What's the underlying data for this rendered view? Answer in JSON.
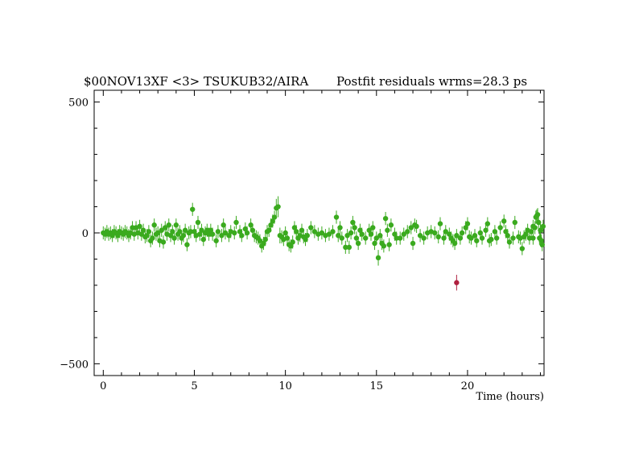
{
  "chart_data": {
    "type": "scatter",
    "title_left": "$00NOV13XF <3> TSUKUB32/AIRA",
    "title_right": "Postfit residuals wrms=28.3  ps",
    "xlabel": "Time (hours)",
    "ylabel": "",
    "xlim": [
      -0.5,
      24.2
    ],
    "ylim": [
      -545,
      545
    ],
    "xticks": [
      0,
      5,
      10,
      15,
      20
    ],
    "xtick_labels": [
      "0",
      "5",
      "10",
      "15",
      "20"
    ],
    "yticks": [
      -500,
      0,
      500
    ],
    "ytick_labels": [
      "−500",
      "0",
      "500"
    ],
    "grid": false,
    "colors": {
      "good": "#3aaa1e",
      "outlier": "#b02040"
    },
    "series": [
      {
        "name": "",
        "color": "#3aaa1e",
        "points": [
          [
            0.0,
            0,
            25
          ],
          [
            0.1,
            -5,
            25
          ],
          [
            0.2,
            5,
            25
          ],
          [
            0.3,
            -5,
            25
          ],
          [
            0.4,
            0,
            25
          ],
          [
            0.5,
            -10,
            25
          ],
          [
            0.6,
            5,
            25
          ],
          [
            0.7,
            0,
            25
          ],
          [
            0.8,
            -10,
            25
          ],
          [
            0.9,
            5,
            25
          ],
          [
            1.0,
            0,
            25
          ],
          [
            1.1,
            -5,
            25
          ],
          [
            1.2,
            5,
            25
          ],
          [
            1.3,
            0,
            25
          ],
          [
            1.4,
            -10,
            25
          ],
          [
            1.5,
            0,
            25
          ],
          [
            1.6,
            20,
            25
          ],
          [
            1.7,
            -5,
            25
          ],
          [
            1.8,
            20,
            25
          ],
          [
            1.9,
            0,
            25
          ],
          [
            2.0,
            25,
            25
          ],
          [
            2.1,
            -5,
            25
          ],
          [
            2.2,
            10,
            25
          ],
          [
            2.3,
            -15,
            25
          ],
          [
            2.4,
            -10,
            25
          ],
          [
            2.5,
            5,
            25
          ],
          [
            2.6,
            -30,
            25
          ],
          [
            2.7,
            -20,
            25
          ],
          [
            2.8,
            30,
            25
          ],
          [
            2.9,
            -5,
            25
          ],
          [
            3.0,
            0,
            25
          ],
          [
            3.1,
            -30,
            25
          ],
          [
            3.2,
            10,
            25
          ],
          [
            3.3,
            -35,
            25
          ],
          [
            3.4,
            20,
            25
          ],
          [
            3.5,
            -5,
            25
          ],
          [
            3.6,
            30,
            25
          ],
          [
            3.7,
            -10,
            25
          ],
          [
            3.8,
            5,
            25
          ],
          [
            3.9,
            -20,
            25
          ],
          [
            4.0,
            30,
            25
          ],
          [
            4.1,
            -5,
            25
          ],
          [
            4.2,
            5,
            25
          ],
          [
            4.3,
            -20,
            25
          ],
          [
            4.4,
            -10,
            25
          ],
          [
            4.5,
            10,
            25
          ],
          [
            4.6,
            -45,
            25
          ],
          [
            4.7,
            0,
            25
          ],
          [
            4.8,
            5,
            25
          ],
          [
            4.9,
            90,
            25
          ],
          [
            5.0,
            5,
            25
          ],
          [
            5.1,
            -10,
            25
          ],
          [
            5.2,
            40,
            25
          ],
          [
            5.3,
            -5,
            25
          ],
          [
            5.4,
            10,
            25
          ],
          [
            5.5,
            -25,
            25
          ],
          [
            5.6,
            0,
            25
          ],
          [
            5.7,
            10,
            25
          ],
          [
            5.8,
            -5,
            25
          ],
          [
            5.9,
            10,
            25
          ],
          [
            6.0,
            -5,
            25
          ],
          [
            6.2,
            -30,
            25
          ],
          [
            6.3,
            5,
            25
          ],
          [
            6.5,
            -10,
            25
          ],
          [
            6.6,
            30,
            25
          ],
          [
            6.7,
            0,
            25
          ],
          [
            6.9,
            -10,
            25
          ],
          [
            7.0,
            5,
            25
          ],
          [
            7.2,
            0,
            25
          ],
          [
            7.3,
            40,
            25
          ],
          [
            7.5,
            5,
            25
          ],
          [
            7.6,
            -10,
            25
          ],
          [
            7.8,
            15,
            25
          ],
          [
            7.9,
            0,
            25
          ],
          [
            8.1,
            30,
            25
          ],
          [
            8.2,
            10,
            25
          ],
          [
            8.3,
            -10,
            25
          ],
          [
            8.4,
            -15,
            25
          ],
          [
            8.5,
            -20,
            25
          ],
          [
            8.6,
            -30,
            25
          ],
          [
            8.7,
            -50,
            25
          ],
          [
            8.8,
            -40,
            25
          ],
          [
            8.9,
            -25,
            25
          ],
          [
            9.0,
            5,
            25
          ],
          [
            9.1,
            10,
            25
          ],
          [
            9.2,
            30,
            25
          ],
          [
            9.3,
            45,
            25
          ],
          [
            9.4,
            60,
            25
          ],
          [
            9.5,
            95,
            35
          ],
          [
            9.6,
            100,
            40
          ],
          [
            9.7,
            -10,
            30
          ],
          [
            9.8,
            -15,
            25
          ],
          [
            9.9,
            -25,
            25
          ],
          [
            10.0,
            0,
            25
          ],
          [
            10.1,
            -20,
            25
          ],
          [
            10.2,
            -45,
            25
          ],
          [
            10.3,
            -50,
            25
          ],
          [
            10.4,
            -35,
            25
          ],
          [
            10.5,
            20,
            25
          ],
          [
            10.6,
            5,
            25
          ],
          [
            10.7,
            -20,
            25
          ],
          [
            10.8,
            -10,
            25
          ],
          [
            10.9,
            10,
            25
          ],
          [
            11.0,
            -15,
            25
          ],
          [
            11.1,
            -25,
            25
          ],
          [
            11.2,
            -10,
            25
          ],
          [
            11.4,
            20,
            25
          ],
          [
            11.6,
            5,
            25
          ],
          [
            11.8,
            -5,
            25
          ],
          [
            12.0,
            0,
            25
          ],
          [
            12.2,
            -10,
            25
          ],
          [
            12.4,
            -5,
            25
          ],
          [
            12.6,
            5,
            25
          ],
          [
            12.8,
            60,
            25
          ],
          [
            12.9,
            -10,
            25
          ],
          [
            13.0,
            20,
            25
          ],
          [
            13.1,
            -20,
            25
          ],
          [
            13.3,
            -55,
            25
          ],
          [
            13.4,
            -10,
            25
          ],
          [
            13.5,
            -55,
            25
          ],
          [
            13.6,
            0,
            25
          ],
          [
            13.7,
            40,
            25
          ],
          [
            13.8,
            20,
            25
          ],
          [
            13.9,
            -20,
            25
          ],
          [
            14.0,
            -40,
            25
          ],
          [
            14.1,
            10,
            25
          ],
          [
            14.2,
            -5,
            25
          ],
          [
            14.4,
            -20,
            25
          ],
          [
            14.6,
            10,
            25
          ],
          [
            14.7,
            -5,
            25
          ],
          [
            14.8,
            20,
            25
          ],
          [
            14.9,
            -40,
            25
          ],
          [
            15.0,
            -20,
            25
          ],
          [
            15.1,
            -95,
            30
          ],
          [
            15.2,
            -10,
            25
          ],
          [
            15.3,
            -40,
            25
          ],
          [
            15.4,
            -50,
            25
          ],
          [
            15.5,
            55,
            25
          ],
          [
            15.6,
            10,
            25
          ],
          [
            15.7,
            -45,
            25
          ],
          [
            15.8,
            30,
            25
          ],
          [
            16.0,
            -5,
            25
          ],
          [
            16.1,
            -20,
            25
          ],
          [
            16.3,
            -20,
            25
          ],
          [
            16.5,
            -5,
            25
          ],
          [
            16.7,
            5,
            25
          ],
          [
            16.9,
            20,
            25
          ],
          [
            17.0,
            -40,
            25
          ],
          [
            17.1,
            30,
            25
          ],
          [
            17.2,
            25,
            25
          ],
          [
            17.4,
            -10,
            25
          ],
          [
            17.6,
            -20,
            25
          ],
          [
            17.8,
            0,
            25
          ],
          [
            18.0,
            5,
            25
          ],
          [
            18.2,
            0,
            25
          ],
          [
            18.4,
            -15,
            25
          ],
          [
            18.5,
            35,
            25
          ],
          [
            18.7,
            -20,
            25
          ],
          [
            18.8,
            5,
            25
          ],
          [
            19.0,
            -5,
            25
          ],
          [
            19.1,
            -20,
            25
          ],
          [
            19.2,
            -30,
            25
          ],
          [
            19.3,
            -40,
            25
          ],
          [
            19.4,
            -10,
            25
          ],
          [
            19.6,
            -20,
            25
          ],
          [
            19.7,
            0,
            25
          ],
          [
            19.9,
            20,
            25
          ],
          [
            20.0,
            35,
            25
          ],
          [
            20.1,
            -15,
            25
          ],
          [
            20.2,
            -20,
            25
          ],
          [
            20.4,
            -10,
            25
          ],
          [
            20.5,
            -30,
            25
          ],
          [
            20.7,
            0,
            25
          ],
          [
            20.8,
            -20,
            25
          ],
          [
            21.0,
            10,
            25
          ],
          [
            21.1,
            35,
            25
          ],
          [
            21.2,
            -30,
            25
          ],
          [
            21.3,
            -25,
            25
          ],
          [
            21.5,
            5,
            25
          ],
          [
            21.6,
            -20,
            25
          ],
          [
            21.8,
            20,
            25
          ],
          [
            22.0,
            45,
            25
          ],
          [
            22.1,
            5,
            25
          ],
          [
            22.2,
            -10,
            25
          ],
          [
            22.3,
            -35,
            25
          ],
          [
            22.5,
            -20,
            25
          ],
          [
            22.6,
            40,
            25
          ],
          [
            22.8,
            -15,
            25
          ],
          [
            22.9,
            -20,
            25
          ],
          [
            23.0,
            -60,
            25
          ],
          [
            23.1,
            -15,
            25
          ],
          [
            23.2,
            -5,
            25
          ],
          [
            23.3,
            10,
            25
          ],
          [
            23.4,
            -20,
            25
          ],
          [
            23.5,
            5,
            25
          ],
          [
            23.6,
            -20,
            25
          ],
          [
            23.7,
            20,
            25
          ],
          [
            23.8,
            65,
            25
          ],
          [
            23.9,
            40,
            25
          ],
          [
            24.0,
            10,
            25
          ],
          [
            23.6,
            25,
            25
          ],
          [
            23.75,
            60,
            25
          ],
          [
            23.85,
            70,
            25
          ],
          [
            23.95,
            -20,
            25
          ],
          [
            24.05,
            -30,
            25
          ],
          [
            24.1,
            -45,
            25
          ],
          [
            24.15,
            25,
            25
          ]
        ]
      },
      {
        "name": "",
        "color": "#b02040",
        "points": [
          [
            19.4,
            -190,
            30
          ]
        ]
      }
    ]
  }
}
